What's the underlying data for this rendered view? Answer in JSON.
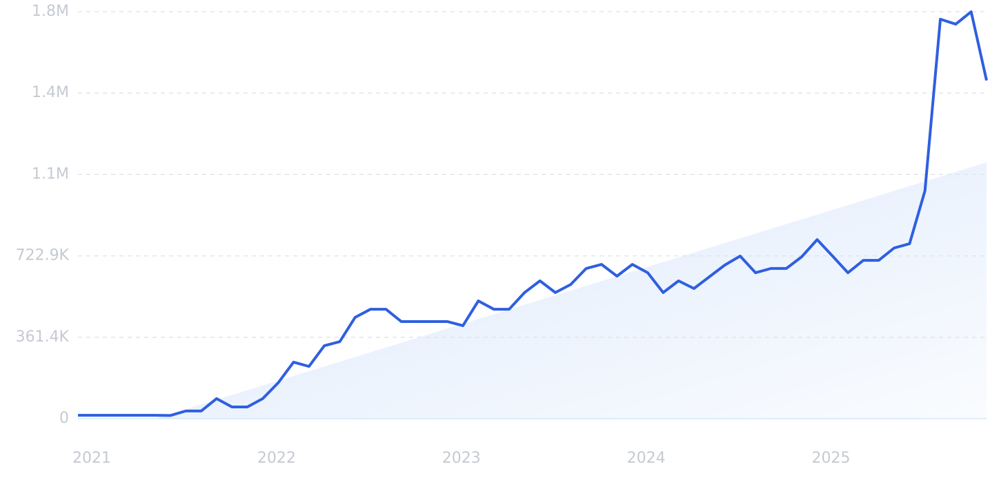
{
  "chart_data": {
    "type": "line",
    "categories": [
      "2021",
      null,
      null,
      null,
      null,
      null,
      null,
      null,
      null,
      null,
      null,
      null,
      "2022",
      null,
      null,
      null,
      null,
      null,
      null,
      null,
      null,
      null,
      null,
      null,
      "2023",
      null,
      null,
      null,
      null,
      null,
      null,
      null,
      null,
      null,
      null,
      null,
      "2024",
      null,
      null,
      null,
      null,
      null,
      null,
      null,
      null,
      null,
      null,
      null,
      "2025",
      null,
      null,
      null,
      null,
      null,
      null,
      null,
      null,
      null,
      null,
      null
    ],
    "series": [
      {
        "color": "#2f5fe0",
        "values": [
          15000,
          15000,
          15000,
          15000,
          15000,
          15000,
          14000,
          34000,
          34000,
          89000,
          52000,
          52000,
          89000,
          159000,
          251000,
          232000,
          324000,
          342000,
          450000,
          486000,
          486000,
          431000,
          431000,
          431000,
          431000,
          413000,
          523000,
          486000,
          486000,
          560000,
          612000,
          560000,
          596000,
          667000,
          685000,
          633000,
          685000,
          648000,
          560000,
          612000,
          578000,
          630000,
          682000,
          722000,
          648000,
          667000,
          667000,
          719000,
          795000,
          722000,
          648000,
          703000,
          703000,
          758000,
          777000,
          1012000,
          1774000,
          1752000,
          1807000,
          1502000
        ]
      }
    ],
    "trend": {
      "x": [
        5,
        59
      ],
      "values": [
        0,
        1138000
      ],
      "color": "#dce9fb"
    },
    "ylim": [
      0,
      1807250
    ],
    "yticks": [
      0,
      {
        "value": 361450,
        "label": "361.4K"
      },
      {
        "value": 722900,
        "label": "722.9K"
      },
      {
        "value": 1084350,
        "label": "1.1M"
      },
      {
        "value": 1445800,
        "label": "1.4M"
      },
      {
        "value": 1807250,
        "label": "1.8M"
      }
    ],
    "grid": true
  }
}
